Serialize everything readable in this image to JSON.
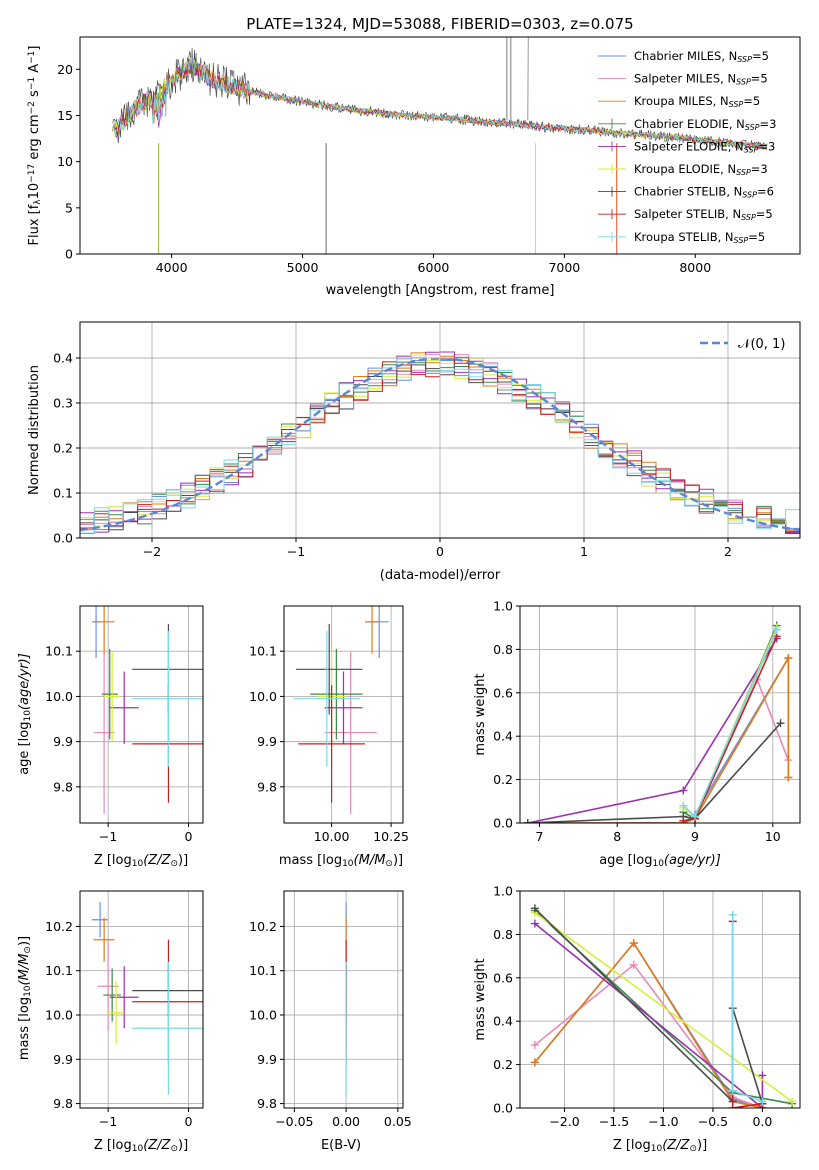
{
  "title": "PLATE=1324, MJD=53088, FIBERID=0303, z=0.075",
  "models": [
    {
      "name": "Chabrier MILES",
      "nssp": "5",
      "color": "#6a8fe0"
    },
    {
      "name": "Salpeter MILES",
      "nssp": "5",
      "color": "#e889b8"
    },
    {
      "name": "Kroupa MILES",
      "nssp": "5",
      "color": "#e07b18"
    },
    {
      "name": "Chabrier ELODIE",
      "nssp": "3",
      "color": "#3a8a4a"
    },
    {
      "name": "Salpeter ELODIE",
      "nssp": "3",
      "color": "#9b30b0"
    },
    {
      "name": "Kroupa ELODIE",
      "nssp": "3",
      "color": "#d6ee3c"
    },
    {
      "name": "Chabrier STELIB",
      "nssp": "6",
      "color": "#4c4c4c"
    },
    {
      "name": "Salpeter STELIB",
      "nssp": "5",
      "color": "#c42020"
    },
    {
      "name": "Kroupa STELIB",
      "nssp": "5",
      "color": "#7ad8e6"
    }
  ],
  "spectrum_panel": {
    "ylabel_main": "Flux [f",
    "ylabel_sub": "λ",
    "ylabel_mid": "10",
    "ylabel_sup": "−17",
    "ylabel_end": " erg cm",
    "ylabel_sup2": "−2",
    "ylabel_s": " s",
    "ylabel_sup3": "−1",
    "ylabel_a": " A",
    "ylabel_sup4": "−1",
    "ylabel_close": "]",
    "xlabel": "wavelength [Angstrom, rest frame]",
    "xticks": [
      "4000",
      "5000",
      "6000",
      "7000",
      "8000"
    ],
    "yticks": [
      "0",
      "5",
      "10",
      "15",
      "20"
    ],
    "legend_prefix": "N",
    "legend_sub": "SSP",
    "legend_eq": "="
  },
  "hist_panel": {
    "ylabel": "Normed distribution",
    "xlabel": "(data-model)/error",
    "xticks": [
      "−2",
      "−1",
      "0",
      "1",
      "2"
    ],
    "yticks": [
      "0.0",
      "0.1",
      "0.2",
      "0.3",
      "0.4"
    ],
    "legend_label": "𝒩(0, 1)"
  },
  "panels_small": {
    "age_label": "age  [log",
    "age_label_sub": "10",
    "age_label_end": "(age/yr)]",
    "z_label": "Z [log",
    "z_label_sub": "10",
    "z_label_end": "(Z/Z",
    "z_label_sun": "⊙",
    "z_label_close": ")]",
    "mass_label": "mass [log",
    "mass_label_sub": "10",
    "mass_label_end": "(M/M",
    "mass_label_sun": "⊙",
    "mass_label_close": ")]",
    "ebv_label": "E(B-V)",
    "weight_label": "mass weight",
    "p3_xticks": [
      "−1",
      "0"
    ],
    "p3_yticks": [
      "9.8",
      "9.9",
      "10.0",
      "10.1"
    ],
    "p4_xticks": [
      "10.00",
      "10.25"
    ],
    "p4_yticks": [
      "9.8",
      "9.9",
      "10.0",
      "10.1"
    ],
    "p5_xticks": [
      "7",
      "8",
      "9",
      "10"
    ],
    "p5_yticks": [
      "0.0",
      "0.2",
      "0.4",
      "0.6",
      "0.8",
      "1.0"
    ],
    "p6_xticks": [
      "−1",
      "0"
    ],
    "p6_yticks": [
      "9.8",
      "9.9",
      "10.0",
      "10.1",
      "10.2"
    ],
    "p7_xticks": [
      "−0.05",
      "0.00",
      "0.05"
    ],
    "p7_yticks": [
      "9.8",
      "9.9",
      "10.0",
      "10.1",
      "10.2"
    ],
    "p8_xticks": [
      "−2.0",
      "−1.5",
      "−1.0",
      "−0.5",
      "0.0"
    ],
    "p8_yticks": [
      "0.0",
      "0.2",
      "0.4",
      "0.6",
      "0.8",
      "1.0"
    ]
  },
  "chart_data": [
    {
      "type": "line",
      "panel": "spectrum",
      "title": "PLATE=1324, MJD=53088, FIBERID=0303, z=0.075",
      "xlabel": "wavelength [Angstrom, rest frame]",
      "xlim": [
        3300,
        8800
      ],
      "ylim": [
        0,
        23.5
      ],
      "data_x": [
        3550,
        3700,
        3850,
        4000,
        4150,
        4300,
        4450,
        4600,
        4800,
        5000,
        5200,
        5400,
        5600,
        5800,
        6000,
        6200,
        6400,
        6600,
        6800,
        7000,
        7200,
        7400,
        7600,
        7800,
        8000,
        8200,
        8400,
        8550
      ],
      "data_y": [
        13.0,
        15.5,
        17.0,
        18.8,
        20.5,
        19.0,
        18.2,
        17.6,
        17.0,
        16.5,
        16.0,
        15.6,
        15.3,
        15.0,
        14.8,
        14.6,
        14.3,
        14.1,
        13.8,
        13.6,
        13.4,
        13.1,
        12.9,
        12.7,
        12.4,
        12.1,
        11.8,
        11.6
      ],
      "absorption_x": [
        3900,
        5180,
        6780,
        7400
      ],
      "grid": false,
      "legend": "top-right"
    },
    {
      "type": "histogram",
      "panel": "residuals",
      "xlabel": "(data-model)/error",
      "ylabel": "Normed distribution",
      "xlim": [
        -2.5,
        2.5
      ],
      "ylim": [
        0,
        0.48
      ],
      "bin_width": 0.1,
      "gaussian": {
        "mu": 0,
        "sigma": 1,
        "label": "𝒩(0, 1)"
      },
      "grid": true,
      "legend": "top-right"
    },
    {
      "type": "scatter",
      "panel": "age_vs_Z",
      "xlim": [
        -1.35,
        0.18
      ],
      "ylim": [
        9.72,
        10.2
      ],
      "points": [
        {
          "model": "Chabrier MILES",
          "x": -1.15,
          "y": 10.165,
          "xerr": 0.05,
          "yerr": 0.08
        },
        {
          "model": "Salpeter MILES",
          "x": -1.05,
          "y": 9.92,
          "xerr": 0.13,
          "yerr": 0.18
        },
        {
          "model": "Kroupa MILES",
          "x": -1.05,
          "y": 10.165,
          "xerr": 0.13,
          "yerr": 0.07
        },
        {
          "model": "Chabrier ELODIE",
          "x": -0.98,
          "y": 10.005,
          "xerr": 0.1,
          "yerr": 0.1
        },
        {
          "model": "Salpeter ELODIE",
          "x": -0.8,
          "y": 9.975,
          "xerr": 0.18,
          "yerr": 0.08
        },
        {
          "model": "Kroupa ELODIE",
          "x": -0.95,
          "y": 10.0,
          "xerr": 0.1,
          "yerr": 0.1
        },
        {
          "model": "Chabrier STELIB",
          "x": -0.25,
          "y": 10.06,
          "xerr": 0.45,
          "yerr": 0.1
        },
        {
          "model": "Salpeter STELIB",
          "x": -0.25,
          "y": 9.895,
          "xerr": 0.45,
          "yerr": 0.13
        },
        {
          "model": "Kroupa STELIB",
          "x": -0.25,
          "y": 9.995,
          "xerr": 0.45,
          "yerr": 0.15
        }
      ]
    },
    {
      "type": "scatter",
      "panel": "age_vs_mass",
      "xlim": [
        9.8,
        10.3
      ],
      "ylim": [
        9.72,
        10.2
      ],
      "points": [
        {
          "model": "Chabrier MILES",
          "x": 10.2,
          "y": 10.165,
          "xerr": 0.04,
          "yerr": 0.08
        },
        {
          "model": "Salpeter MILES",
          "x": 10.08,
          "y": 9.92,
          "xerr": 0.11,
          "yerr": 0.18
        },
        {
          "model": "Kroupa MILES",
          "x": 10.17,
          "y": 10.165,
          "xerr": 0.03,
          "yerr": 0.07
        },
        {
          "model": "Chabrier ELODIE",
          "x": 10.02,
          "y": 10.005,
          "xerr": 0.11,
          "yerr": 0.1
        },
        {
          "model": "Salpeter ELODIE",
          "x": 10.05,
          "y": 9.975,
          "xerr": 0.08,
          "yerr": 0.08
        },
        {
          "model": "Kroupa ELODIE",
          "x": 10.0,
          "y": 10.0,
          "xerr": 0.06,
          "yerr": 0.1
        },
        {
          "model": "Chabrier STELIB",
          "x": 9.99,
          "y": 10.06,
          "xerr": 0.14,
          "yerr": 0.1
        },
        {
          "model": "Salpeter STELIB",
          "x": 10.0,
          "y": 9.895,
          "xerr": 0.14,
          "yerr": 0.13
        },
        {
          "model": "Kroupa STELIB",
          "x": 9.98,
          "y": 9.995,
          "xerr": 0.14,
          "yerr": 0.15
        }
      ]
    },
    {
      "type": "line",
      "panel": "weight_vs_age",
      "xlim": [
        6.75,
        10.35
      ],
      "ylim": [
        0,
        1.0
      ],
      "series": [
        {
          "model": "Chabrier MILES",
          "x": [
            6.85,
            8.85,
            9.0,
            10.2,
            10.2
          ],
          "y": [
            0.0,
            0.0,
            0.04,
            0.76,
            0.21
          ]
        },
        {
          "model": "Salpeter MILES",
          "x": [
            6.85,
            8.85,
            9.0,
            9.8,
            10.2
          ],
          "y": [
            0.0,
            0.0,
            0.03,
            0.66,
            0.29
          ]
        },
        {
          "model": "Kroupa MILES",
          "x": [
            6.85,
            8.85,
            9.0,
            10.2,
            10.2
          ],
          "y": [
            0.0,
            0.0,
            0.02,
            0.76,
            0.21
          ]
        },
        {
          "model": "Chabrier ELODIE",
          "x": [
            8.85,
            9.0,
            10.05
          ],
          "y": [
            0.05,
            0.02,
            0.91
          ]
        },
        {
          "model": "Salpeter ELODIE",
          "x": [
            6.85,
            8.85,
            10.05
          ],
          "y": [
            0.0,
            0.15,
            0.85
          ]
        },
        {
          "model": "Kroupa ELODIE",
          "x": [
            8.85,
            9.0,
            10.05
          ],
          "y": [
            0.07,
            0.03,
            0.9
          ]
        },
        {
          "model": "Chabrier STELIB",
          "x": [
            6.85,
            8.85,
            9.0,
            10.1
          ],
          "y": [
            0.0,
            0.03,
            0.02,
            0.46
          ]
        },
        {
          "model": "Salpeter STELIB",
          "x": [
            8.85,
            9.0,
            10.05
          ],
          "y": [
            0.01,
            0.02,
            0.86
          ]
        },
        {
          "model": "Kroupa STELIB",
          "x": [
            8.85,
            9.0,
            10.05
          ],
          "y": [
            0.08,
            0.03,
            0.89
          ]
        }
      ]
    },
    {
      "type": "scatter",
      "panel": "mass_vs_Z",
      "xlim": [
        -1.35,
        0.18
      ],
      "ylim": [
        9.79,
        10.28
      ],
      "points": [
        {
          "model": "Chabrier MILES",
          "x": -1.1,
          "y": 10.215,
          "xerr": 0.1,
          "yerr": 0.04
        },
        {
          "model": "Salpeter MILES",
          "x": -1.0,
          "y": 10.065,
          "xerr": 0.13,
          "yerr": 0.1
        },
        {
          "model": "Kroupa MILES",
          "x": -1.05,
          "y": 10.17,
          "xerr": 0.13,
          "yerr": 0.05
        },
        {
          "model": "Chabrier ELODIE",
          "x": -0.95,
          "y": 10.045,
          "xerr": 0.11,
          "yerr": 0.06
        },
        {
          "model": "Salpeter ELODIE",
          "x": -0.8,
          "y": 10.04,
          "xerr": 0.18,
          "yerr": 0.07
        },
        {
          "model": "Kroupa ELODIE",
          "x": -0.9,
          "y": 10.005,
          "xerr": 0.1,
          "yerr": 0.07
        },
        {
          "model": "Chabrier STELIB",
          "x": -0.25,
          "y": 10.055,
          "xerr": 0.45,
          "yerr": 0.06
        },
        {
          "model": "Salpeter STELIB",
          "x": -0.25,
          "y": 10.03,
          "xerr": 0.45,
          "yerr": 0.14
        },
        {
          "model": "Kroupa STELIB",
          "x": -0.25,
          "y": 9.97,
          "xerr": 0.45,
          "yerr": 0.15
        }
      ]
    },
    {
      "type": "scatter",
      "panel": "mass_vs_ebv",
      "xlim": [
        -0.06,
        0.055
      ],
      "ylim": [
        9.79,
        10.28
      ],
      "points": [
        {
          "model": "Chabrier MILES",
          "x": 0.0,
          "y": 10.215,
          "yerr": 0.04
        },
        {
          "model": "Salpeter MILES",
          "x": 0.0,
          "y": 10.065,
          "yerr": 0.1
        },
        {
          "model": "Kroupa MILES",
          "x": 0.0,
          "y": 10.17,
          "yerr": 0.05
        },
        {
          "model": "Chabrier ELODIE",
          "x": 0.0,
          "y": 10.045,
          "yerr": 0.06
        },
        {
          "model": "Salpeter ELODIE",
          "x": 0.0,
          "y": 10.04,
          "yerr": 0.07
        },
        {
          "model": "Kroupa ELODIE",
          "x": 0.0,
          "y": 10.005,
          "yerr": 0.07
        },
        {
          "model": "Chabrier STELIB",
          "x": 0.0,
          "y": 10.055,
          "yerr": 0.06
        },
        {
          "model": "Salpeter STELIB",
          "x": 0.0,
          "y": 10.03,
          "yerr": 0.14
        },
        {
          "model": "Kroupa STELIB",
          "x": 0.0,
          "y": 9.97,
          "yerr": 0.15
        }
      ]
    },
    {
      "type": "line",
      "panel": "weight_vs_Z",
      "xlim": [
        -2.45,
        0.38
      ],
      "ylim": [
        0,
        1.0
      ],
      "series": [
        {
          "model": "Chabrier MILES",
          "x": [
            -2.3,
            -1.3,
            -0.3,
            0.0
          ],
          "y": [
            0.21,
            0.76,
            0.04,
            0.0
          ]
        },
        {
          "model": "Salpeter MILES",
          "x": [
            -2.3,
            -1.3,
            -0.3,
            0.0
          ],
          "y": [
            0.29,
            0.66,
            0.05,
            0.0
          ]
        },
        {
          "model": "Kroupa MILES",
          "x": [
            -2.3,
            -1.3,
            -0.3,
            0.0
          ],
          "y": [
            0.21,
            0.76,
            0.03,
            0.0
          ]
        },
        {
          "model": "Chabrier ELODIE",
          "x": [
            -2.3,
            -0.3,
            0.3
          ],
          "y": [
            0.91,
            0.07,
            0.02
          ]
        },
        {
          "model": "Salpeter ELODIE",
          "x": [
            -2.3,
            0.0,
            0.0
          ],
          "y": [
            0.85,
            0.0,
            0.15
          ]
        },
        {
          "model": "Kroupa ELODIE",
          "x": [
            -2.3,
            0.3
          ],
          "y": [
            0.9,
            0.03
          ]
        },
        {
          "model": "Chabrier STELIB",
          "x": [
            -2.3,
            -0.3,
            -0.3,
            0.0
          ],
          "y": [
            0.92,
            0.03,
            0.46,
            0.02
          ]
        },
        {
          "model": "Salpeter STELIB",
          "x": [
            -0.3,
            -0.3,
            0.0
          ],
          "y": [
            0.86,
            0.0,
            0.02
          ]
        },
        {
          "model": "Kroupa STELIB",
          "x": [
            -0.3,
            -0.3,
            0.0
          ],
          "y": [
            0.89,
            0.08,
            0.03
          ]
        }
      ]
    }
  ]
}
